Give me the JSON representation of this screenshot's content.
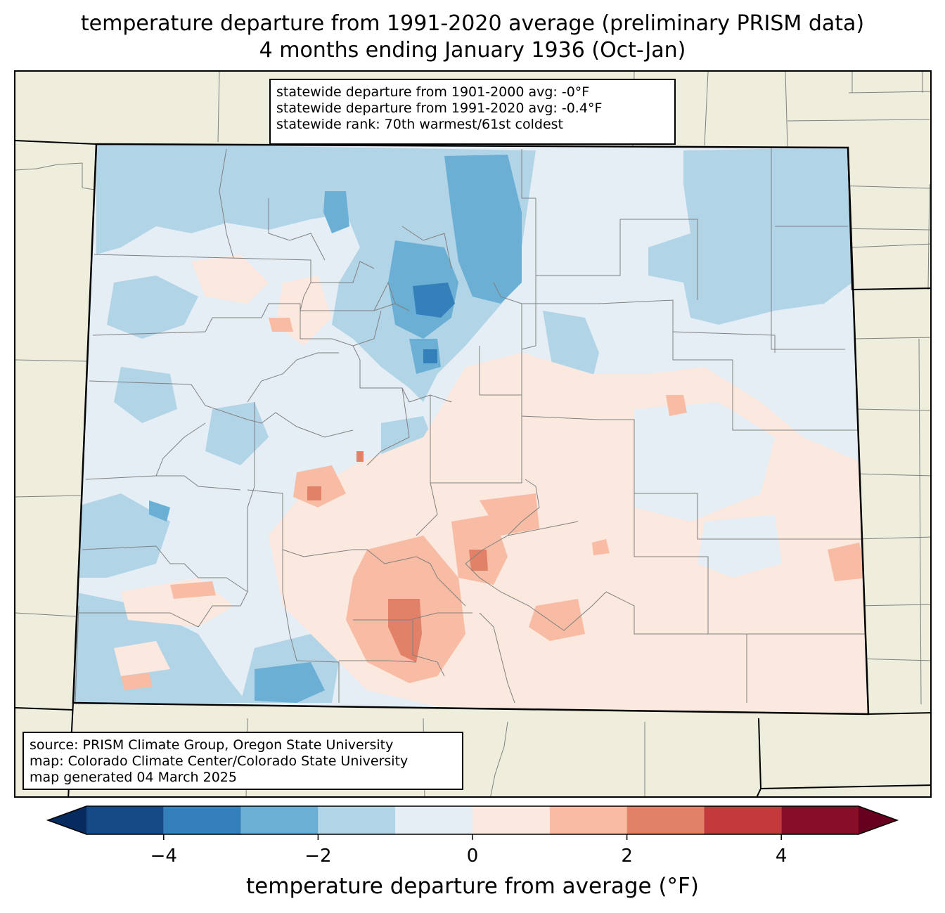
{
  "title": {
    "line1": "temperature departure from 1991-2020 average (preliminary PRISM data)",
    "line2": "4 months ending January 1936 (Oct-Jan)"
  },
  "stats": {
    "line1": "statewide departure from 1901-2000 avg: -0°F",
    "line2": "statewide departure from 1991-2020 avg: -0.4°F",
    "line3": "statewide rank: 70th warmest/61st coldest"
  },
  "source": {
    "line1": "source: PRISM Climate Group, Oregon State University",
    "line2": "map: Colorado Climate Center/Colorado State University",
    "line3": "map generated 04 March 2025"
  },
  "colorbar": {
    "label": "temperature departure from average (°F)",
    "ticks": [
      "−4",
      "−2",
      "0",
      "2",
      "4"
    ],
    "tick_values": [
      -4,
      -2,
      0,
      2,
      4
    ],
    "range": [
      -5,
      5
    ],
    "bins": [
      {
        "min": -5,
        "max": -4,
        "color": "#164a86"
      },
      {
        "min": -4,
        "max": -3,
        "color": "#3380bb"
      },
      {
        "min": -3,
        "max": -2,
        "color": "#6bafd4"
      },
      {
        "min": -2,
        "max": -1,
        "color": "#b2d4e7"
      },
      {
        "min": -1,
        "max": 0,
        "color": "#e5eef5"
      },
      {
        "min": 0,
        "max": 1,
        "color": "#fbe8df"
      },
      {
        "min": 1,
        "max": 2,
        "color": "#f7bca3"
      },
      {
        "min": 2,
        "max": 3,
        "color": "#e18168"
      },
      {
        "min": 3,
        "max": 4,
        "color": "#c3393c"
      },
      {
        "min": 4,
        "max": 5,
        "color": "#880e28"
      }
    ],
    "extend_low_color": "#062c5f",
    "extend_high_color": "#67001f"
  },
  "colors": {
    "land": "#efeedc",
    "state_border": "#000000",
    "county_border": "#808080"
  }
}
